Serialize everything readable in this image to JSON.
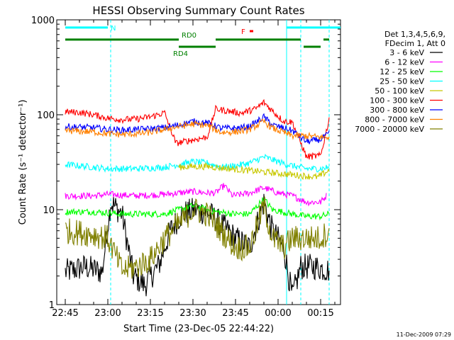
{
  "chart_data": {
    "type": "line",
    "title": "HESSI Observing Summary Count Rates",
    "xlabel": "Start Time (23-Dec-05 22:44:22)",
    "ylabel": "Count Rate (s⁻¹ detector⁻¹)",
    "y_scale": "log",
    "ylim": [
      1,
      1000
    ],
    "xlim": [
      "22:42",
      "00:22"
    ],
    "x_ticks": [
      "22:45",
      "23:00",
      "23:15",
      "23:30",
      "23:45",
      "00:00",
      "00:15"
    ],
    "y_ticks": [
      "1",
      "10",
      "100",
      "1000"
    ],
    "legend": {
      "position": "right",
      "header": [
        "Det 1,3,4,5,6,9,",
        "FDecim 1, Att 0"
      ]
    },
    "series": [
      {
        "name": "3 - 6 keV",
        "color": "#000000",
        "points": [
          [
            "22:45",
            2.2
          ],
          [
            "22:52",
            2.5
          ],
          [
            "22:58",
            2.2
          ],
          [
            "23:01",
            12
          ],
          [
            "23:05",
            9
          ],
          [
            "23:09",
            2.0
          ],
          [
            "23:13",
            1.6
          ],
          [
            "23:18",
            2.6
          ],
          [
            "23:22",
            6
          ],
          [
            "23:26",
            9
          ],
          [
            "23:31",
            10
          ],
          [
            "23:36",
            9
          ],
          [
            "23:40",
            7
          ],
          [
            "23:45",
            5
          ],
          [
            "23:50",
            4
          ],
          [
            "23:55",
            12
          ],
          [
            "23:58",
            6
          ],
          [
            "00:02",
            4
          ],
          [
            "00:05",
            1.2
          ],
          [
            "00:08",
            2.5
          ],
          [
            "00:13",
            2.5
          ],
          [
            "00:18",
            2.3
          ]
        ]
      },
      {
        "name": "6 - 12 keV",
        "color": "#ff00ff",
        "points": [
          [
            "22:45",
            14
          ],
          [
            "22:55",
            14
          ],
          [
            "23:00",
            14.5
          ],
          [
            "23:10",
            14
          ],
          [
            "23:20",
            14.5
          ],
          [
            "23:25",
            15
          ],
          [
            "23:30",
            15.5
          ],
          [
            "23:35",
            15
          ],
          [
            "23:38",
            15
          ],
          [
            "23:41",
            18
          ],
          [
            "23:44",
            14
          ],
          [
            "23:50",
            15
          ],
          [
            "23:55",
            17
          ],
          [
            "00:00",
            15
          ],
          [
            "00:05",
            14
          ],
          [
            "00:10",
            12
          ],
          [
            "00:15",
            12
          ],
          [
            "00:17",
            14
          ]
        ]
      },
      {
        "name": "12 - 25 keV",
        "color": "#00ff00",
        "points": [
          [
            "22:45",
            9.5
          ],
          [
            "22:55",
            9.5
          ],
          [
            "23:05",
            9
          ],
          [
            "23:15",
            9
          ],
          [
            "23:20",
            9
          ],
          [
            "23:25",
            10
          ],
          [
            "23:30",
            11
          ],
          [
            "23:35",
            10
          ],
          [
            "23:38",
            9.5
          ],
          [
            "23:45",
            9
          ],
          [
            "23:50",
            9
          ],
          [
            "23:55",
            13
          ],
          [
            "23:58",
            10
          ],
          [
            "00:05",
            9
          ],
          [
            "00:10",
            8.5
          ],
          [
            "00:15",
            8.5
          ],
          [
            "00:18",
            9
          ]
        ]
      },
      {
        "name": "25 - 50 keV",
        "color": "#00ffff",
        "points": [
          [
            "22:45",
            30
          ],
          [
            "22:55",
            28
          ],
          [
            "23:00",
            27
          ],
          [
            "23:10",
            27
          ],
          [
            "23:20",
            28
          ],
          [
            "23:25",
            30
          ],
          [
            "23:30",
            32
          ],
          [
            "23:35",
            31
          ],
          [
            "23:40",
            28
          ],
          [
            "23:45",
            29
          ],
          [
            "23:50",
            31
          ],
          [
            "23:55",
            36
          ],
          [
            "00:00",
            32
          ],
          [
            "00:05",
            29
          ],
          [
            "00:10",
            27
          ],
          [
            "00:15",
            27
          ],
          [
            "00:18",
            28
          ]
        ]
      },
      {
        "name": "50 - 100 keV",
        "color": "#c8c800",
        "points": [
          [
            "23:25",
            28
          ],
          [
            "23:30",
            28.5
          ],
          [
            "23:35",
            28.5
          ],
          [
            "00:14",
            22
          ],
          [
            "00:18",
            26
          ]
        ]
      },
      {
        "name": "100 - 300 keV",
        "color": "#ff0000",
        "points": [
          [
            "22:45",
            107
          ],
          [
            "22:50",
            106
          ],
          [
            "22:55",
            100
          ],
          [
            "23:00",
            92
          ],
          [
            "23:05",
            89
          ],
          [
            "23:10",
            90
          ],
          [
            "23:15",
            95
          ],
          [
            "23:20",
            105
          ],
          [
            "23:24",
            50
          ],
          [
            "23:28",
            53
          ],
          [
            "23:35",
            58
          ],
          [
            "23:38",
            115
          ],
          [
            "23:42",
            110
          ],
          [
            "23:47",
            104
          ],
          [
            "23:52",
            115
          ],
          [
            "23:55",
            135
          ],
          [
            "23:58",
            110
          ],
          [
            "00:02",
            85
          ],
          [
            "00:05",
            84
          ],
          [
            "00:10",
            36
          ],
          [
            "00:15",
            37
          ],
          [
            "00:18",
            90
          ]
        ]
      },
      {
        "name": "300 - 800 keV",
        "color": "#0000ff",
        "points": [
          [
            "22:45",
            75
          ],
          [
            "22:55",
            73
          ],
          [
            "23:00",
            70
          ],
          [
            "23:05",
            69
          ],
          [
            "23:10",
            70
          ],
          [
            "23:15",
            71
          ],
          [
            "23:20",
            73
          ],
          [
            "23:25",
            78
          ],
          [
            "23:30",
            85
          ],
          [
            "23:35",
            82
          ],
          [
            "23:40",
            72
          ],
          [
            "23:45",
            72
          ],
          [
            "23:50",
            75
          ],
          [
            "23:55",
            95
          ],
          [
            "23:58",
            78
          ],
          [
            "00:05",
            68
          ],
          [
            "00:10",
            52
          ],
          [
            "00:15",
            55
          ],
          [
            "00:18",
            63
          ]
        ]
      },
      {
        "name": "800 - 7000 keV",
        "color": "#ff8000",
        "points": [
          [
            "22:45",
            68
          ],
          [
            "22:55",
            66
          ],
          [
            "23:00",
            63
          ],
          [
            "23:05",
            62
          ],
          [
            "23:10",
            63
          ],
          [
            "23:15",
            65
          ],
          [
            "23:20",
            70
          ],
          [
            "23:25",
            75
          ],
          [
            "23:30",
            80
          ],
          [
            "23:35",
            77
          ],
          [
            "23:40",
            65
          ],
          [
            "23:45",
            66
          ],
          [
            "23:50",
            70
          ],
          [
            "23:55",
            85
          ],
          [
            "23:58",
            72
          ],
          [
            "00:05",
            60
          ],
          [
            "00:10",
            60
          ],
          [
            "00:15",
            58
          ],
          [
            "00:18",
            58
          ]
        ]
      },
      {
        "name": "7000 - 20000 keV",
        "color": "#808000",
        "points": [
          [
            "22:45",
            6
          ],
          [
            "22:55",
            5.5
          ],
          [
            "23:00",
            5
          ],
          [
            "23:05",
            2.3
          ],
          [
            "23:10",
            2.5
          ],
          [
            "23:15",
            3
          ],
          [
            "23:20",
            5
          ],
          [
            "23:25",
            7
          ],
          [
            "23:30",
            10
          ],
          [
            "23:35",
            9
          ],
          [
            "23:40",
            6
          ],
          [
            "23:45",
            4
          ],
          [
            "23:50",
            4
          ],
          [
            "23:55",
            11
          ],
          [
            "23:58",
            5
          ],
          [
            "00:02",
            4
          ],
          [
            "00:05",
            5
          ],
          [
            "00:10",
            5
          ],
          [
            "00:15",
            5
          ],
          [
            "00:18",
            6
          ]
        ]
      }
    ],
    "annotations": [
      {
        "label": "N",
        "color": "#00ffff",
        "y": 830,
        "segments": [
          [
            "22:45",
            "23:00"
          ],
          [
            "00:03",
            "00:22"
          ]
        ]
      },
      {
        "label": "F",
        "color": "#ff0000",
        "y": 760,
        "segments": [
          [
            "23:50",
            "23:51"
          ]
        ]
      },
      {
        "label": "RD0",
        "color": "#008000",
        "y": 620,
        "segments": [
          [
            "22:45",
            "23:25"
          ],
          [
            "23:38",
            "00:08"
          ],
          [
            "00:16",
            "00:18"
          ]
        ]
      },
      {
        "label": "RD4",
        "color": "#008000",
        "y": 520,
        "segments": [
          [
            "23:25",
            "23:38"
          ],
          [
            "00:09",
            "00:15"
          ]
        ]
      }
    ],
    "vertical_markers": [
      {
        "x": "23:01",
        "color": "#00ffff",
        "style": "dashed"
      },
      {
        "x": "00:03",
        "color": "#00ffff",
        "style": "solid"
      },
      {
        "x": "00:08",
        "color": "#00ffff",
        "style": "dashed"
      },
      {
        "x": "00:18",
        "color": "#00ffff",
        "style": "dashed"
      }
    ]
  },
  "footer": {
    "timestamp": "11-Dec-2009 07:29"
  }
}
